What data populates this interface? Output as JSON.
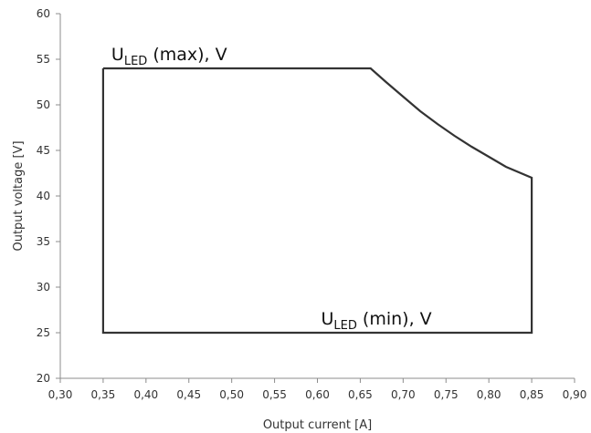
{
  "chart_data": {
    "type": "line",
    "title": "",
    "xlabel": "Output current [A]",
    "ylabel": "Output voltage [V]",
    "xlim": [
      0.3,
      0.9
    ],
    "ylim": [
      20,
      60
    ],
    "x_ticks": [
      "0,30",
      "0,35",
      "0,40",
      "0,45",
      "0,50",
      "0,55",
      "0,60",
      "0,65",
      "0,70",
      "0,75",
      "0,80",
      "0,85",
      "0,90"
    ],
    "y_ticks": [
      "20",
      "25",
      "30",
      "35",
      "40",
      "45",
      "50",
      "55",
      "60"
    ],
    "grid": false,
    "legend": "none",
    "series": [
      {
        "x": [
          0.35,
          0.662,
          0.68,
          0.7,
          0.72,
          0.74,
          0.76,
          0.78,
          0.8,
          0.82,
          0.85,
          0.85,
          0.35,
          0.35
        ],
        "y": [
          54,
          54,
          52.5,
          50.9,
          49.3,
          47.9,
          46.6,
          45.4,
          44.3,
          43.2,
          42,
          25,
          25,
          54
        ]
      }
    ],
    "annotations": [
      {
        "main": "U",
        "sub": "LED",
        "rest": " (max), V",
        "x": 0.35,
        "y": 54
      },
      {
        "main": "U",
        "sub": "LED",
        "rest": " (min), V",
        "x": 0.6,
        "y": 25
      }
    ]
  }
}
